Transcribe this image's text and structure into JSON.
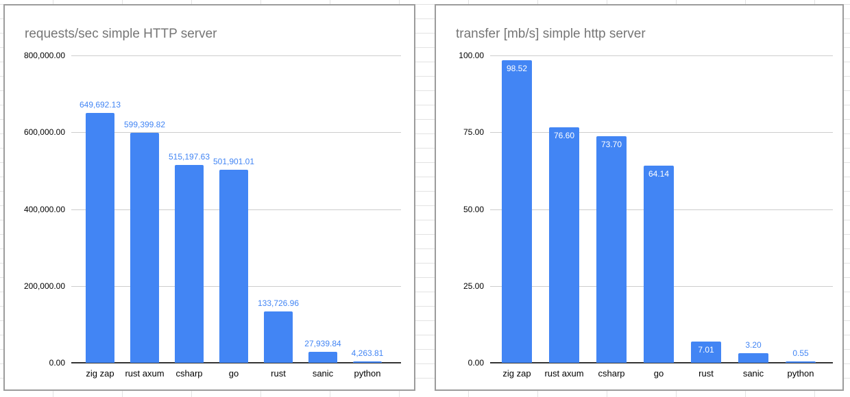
{
  "colors": {
    "bar": "#4285f4",
    "data_label_outside": "#4285f4",
    "data_label_inside": "#ffffff",
    "title": "#757575",
    "axis_line": "#333333",
    "gridline": "#cccccc",
    "tick_text": "#000000",
    "chart_border": "#9b9b9b",
    "sheet_gridline": "#e2e2e2"
  },
  "chart_data": [
    {
      "type": "bar",
      "title": "requests/sec simple HTTP server",
      "categories": [
        "zig zap",
        "rust axum",
        "csharp",
        "go",
        "rust",
        "sanic",
        "python"
      ],
      "values": [
        649692.13,
        599399.82,
        515197.63,
        501901.01,
        133726.96,
        27939.84,
        4263.81
      ],
      "data_labels": [
        "649,692.13",
        "599,399.82",
        "515,197.63",
        "501,901.01",
        "133,726.96",
        "27,939.84",
        "4,263.81"
      ],
      "ylim": [
        0,
        800000
      ],
      "ytick_labels": [
        "0.00",
        "200,000.00",
        "400,000.00",
        "600,000.00",
        "800,000.00"
      ],
      "grid": true,
      "legend": "none",
      "data_label_position": "outside"
    },
    {
      "type": "bar",
      "title": "transfer [mb/s] simple http server",
      "categories": [
        "zig zap",
        "rust axum",
        "csharp",
        "go",
        "rust",
        "sanic",
        "python"
      ],
      "values": [
        98.52,
        76.6,
        73.7,
        64.14,
        7.01,
        3.2,
        0.55
      ],
      "data_labels": [
        "98.52",
        "76.60",
        "73.70",
        "64.14",
        "7.01",
        "3.20",
        "0.55"
      ],
      "ylim": [
        0,
        100
      ],
      "ytick_labels": [
        "0.00",
        "25.00",
        "50.00",
        "75.00",
        "100.00"
      ],
      "grid": true,
      "legend": "none",
      "data_label_position": "auto"
    }
  ]
}
